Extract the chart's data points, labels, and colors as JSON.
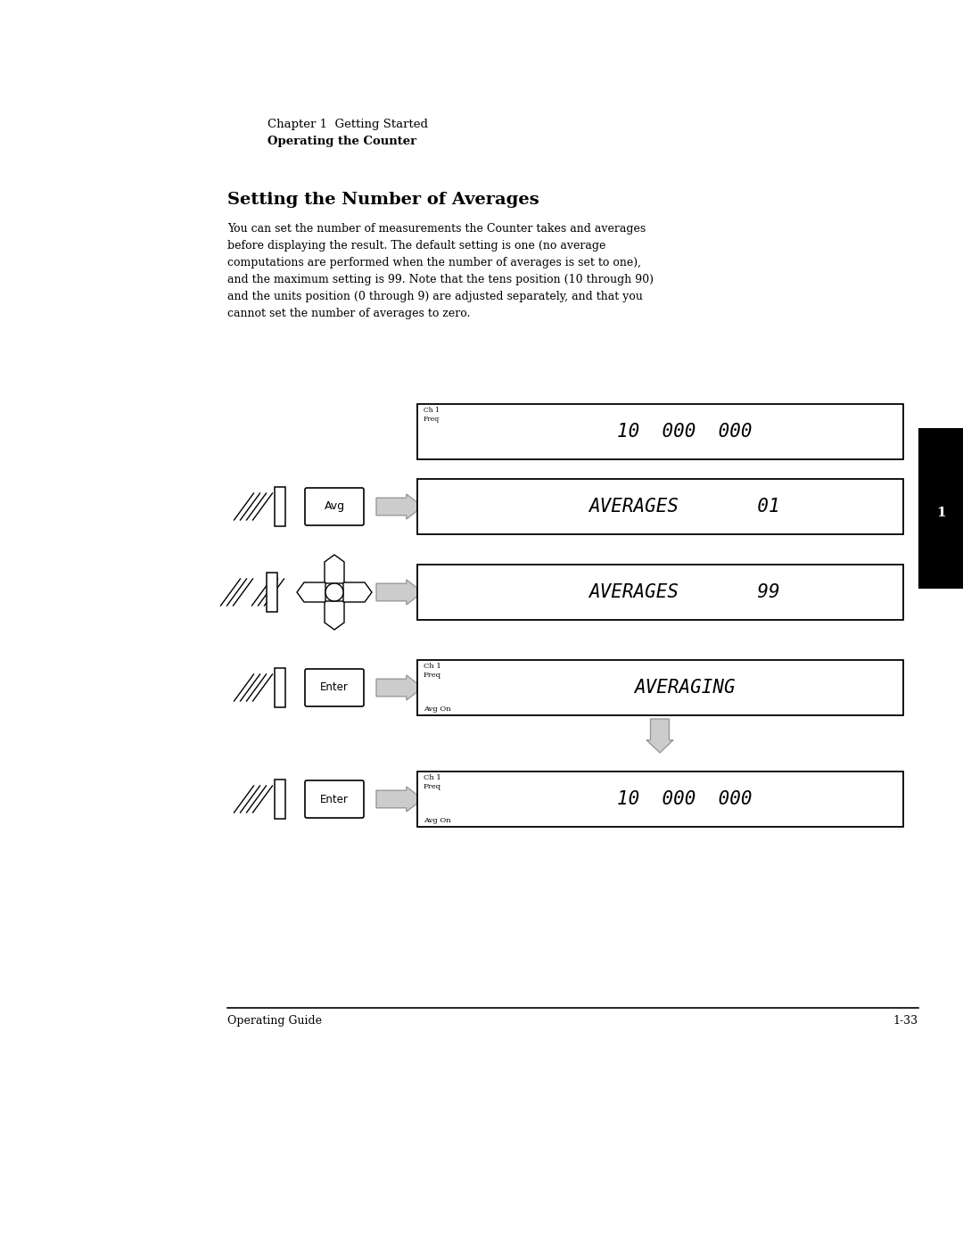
{
  "bg_color": "#ffffff",
  "page_width": 10.8,
  "page_height": 13.97,
  "header_line1": "Chapter 1  Getting Started",
  "header_line2": "Operating the Counter",
  "section_title": "Setting the Number of Averages",
  "body_text_lines": [
    "You can set the number of measurements the Counter takes and averages",
    "before displaying the result. The default setting is one (no average",
    "computations are performed when the number of averages is set to one),",
    "and the maximum setting is 99. Note that the tens position (10 through 90)",
    "and the units position (0 through 9) are adjusted separately, and that you",
    "cannot set the number of averages to zero."
  ],
  "footer_left": "Operating Guide",
  "footer_right": "1-33",
  "tab_label": "1"
}
